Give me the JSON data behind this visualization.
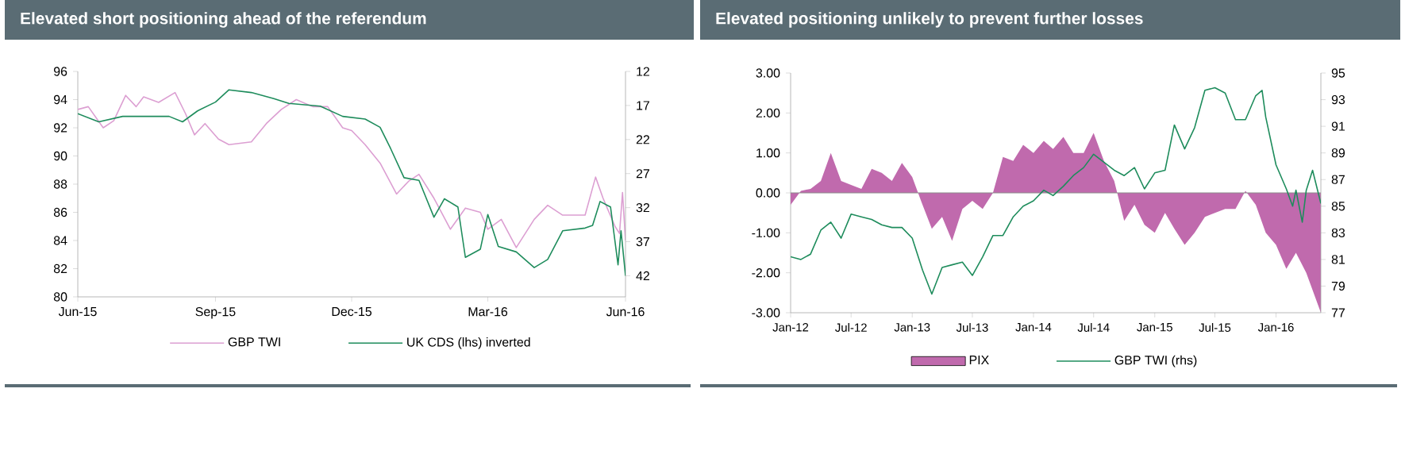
{
  "chart_data": [
    {
      "type": "line",
      "title": "Elevated short positioning ahead of the referendum",
      "xlim": [
        "2015-06-01",
        "2016-06-01"
      ],
      "xticks": [
        {
          "value": "2015-06-01",
          "label": "Jun-15"
        },
        {
          "value": "2015-09-01",
          "label": "Sep-15"
        },
        {
          "value": "2015-12-01",
          "label": "Dec-15"
        },
        {
          "value": "2016-03-01",
          "label": "Mar-16"
        },
        {
          "value": "2016-06-01",
          "label": "Jun-16"
        }
      ],
      "ylim": [
        80,
        96
      ],
      "yticks": [
        80,
        82,
        84,
        86,
        88,
        90,
        92,
        94,
        96
      ],
      "y2lim": [
        45.1,
        12
      ],
      "y2ticks": [
        12,
        17,
        22,
        27,
        32,
        37,
        42
      ],
      "legend": "bottom",
      "series": [
        {
          "name": "GBP TWI",
          "color": "#dc9fd2",
          "x": [
            "2015-06-01",
            "2015-06-08",
            "2015-06-18",
            "2015-06-25",
            "2015-07-03",
            "2015-07-10",
            "2015-07-15",
            "2015-07-25",
            "2015-08-05",
            "2015-08-12",
            "2015-08-18",
            "2015-08-25",
            "2015-09-03",
            "2015-09-10",
            "2015-09-25",
            "2015-10-05",
            "2015-10-15",
            "2015-10-25",
            "2015-11-05",
            "2015-11-15",
            "2015-11-25",
            "2015-12-01",
            "2015-12-10",
            "2015-12-20",
            "2015-12-31",
            "2016-01-08",
            "2016-01-15",
            "2016-01-25",
            "2016-02-05",
            "2016-02-15",
            "2016-02-25",
            "2016-03-01",
            "2016-03-10",
            "2016-03-20",
            "2016-04-01",
            "2016-04-10",
            "2016-04-20",
            "2016-05-05",
            "2016-05-12",
            "2016-05-17",
            "2016-05-25",
            "2016-05-28",
            "2016-05-30",
            "2016-06-01"
          ],
          "values": [
            93.3,
            93.5,
            92.0,
            92.5,
            94.3,
            93.5,
            94.2,
            93.8,
            94.5,
            93.0,
            91.5,
            92.3,
            91.2,
            90.8,
            91.0,
            92.3,
            93.3,
            94.0,
            93.5,
            93.5,
            92.0,
            91.8,
            90.8,
            89.5,
            87.3,
            88.2,
            88.7,
            87.0,
            84.8,
            86.3,
            86.0,
            84.8,
            85.5,
            83.5,
            85.5,
            86.5,
            85.8,
            85.8,
            88.5,
            87.0,
            85.0,
            84.5,
            87.4,
            84.0
          ]
        },
        {
          "name": "UK CDS (lhs) inverted",
          "color": "#1e8c5c",
          "axis": "y2",
          "x": [
            "2015-06-01",
            "2015-06-15",
            "2015-07-01",
            "2015-08-01",
            "2015-08-10",
            "2015-08-20",
            "2015-09-01",
            "2015-09-10",
            "2015-09-25",
            "2015-10-10",
            "2015-10-20",
            "2015-11-10",
            "2015-11-25",
            "2015-12-10",
            "2015-12-20",
            "2015-12-27",
            "2016-01-05",
            "2016-01-15",
            "2016-01-25",
            "2016-02-01",
            "2016-02-10",
            "2016-02-15",
            "2016-02-25",
            "2016-03-01",
            "2016-03-08",
            "2016-03-20",
            "2016-04-01",
            "2016-04-10",
            "2016-04-20",
            "2016-05-05",
            "2016-05-10",
            "2016-05-15",
            "2016-05-22",
            "2016-05-27",
            "2016-05-29",
            "2016-06-01"
          ],
          "values": [
            18.2,
            19.4,
            18.6,
            18.6,
            19.4,
            17.8,
            16.5,
            14.7,
            15.1,
            16.0,
            16.7,
            17.1,
            18.6,
            19.0,
            20.2,
            23.3,
            27.6,
            28.0,
            33.4,
            30.7,
            31.9,
            39.3,
            38.1,
            33.0,
            37.7,
            38.5,
            40.8,
            39.6,
            35.4,
            35.0,
            34.6,
            31.1,
            31.9,
            40.4,
            35.4,
            42.0
          ]
        }
      ]
    },
    {
      "type": "area",
      "title": "Elevated positioning unlikely to prevent further losses",
      "xlim": [
        "2012-01-01",
        "2016-05-15"
      ],
      "xticks": [
        {
          "value": "2012-01-01",
          "label": "Jan-12"
        },
        {
          "value": "2012-07-01",
          "label": "Jul-12"
        },
        {
          "value": "2013-01-01",
          "label": "Jan-13"
        },
        {
          "value": "2013-07-01",
          "label": "Jul-13"
        },
        {
          "value": "2014-01-01",
          "label": "Jan-14"
        },
        {
          "value": "2014-07-01",
          "label": "Jul-14"
        },
        {
          "value": "2015-01-01",
          "label": "Jan-15"
        },
        {
          "value": "2015-07-01",
          "label": "Jul-15"
        },
        {
          "value": "2016-01-01",
          "label": "Jan-16"
        }
      ],
      "ylim": [
        -3,
        3
      ],
      "yticks": [
        {
          "value": -3,
          "label": "-3.00"
        },
        {
          "value": -2,
          "label": "-2.00"
        },
        {
          "value": -1,
          "label": "-1.00"
        },
        {
          "value": 0,
          "label": "0.00"
        },
        {
          "value": 1,
          "label": "1.00"
        },
        {
          "value": 2,
          "label": "2.00"
        },
        {
          "value": 3,
          "label": "3.00"
        }
      ],
      "y2lim": [
        77,
        95
      ],
      "y2ticks": [
        77,
        79,
        81,
        83,
        85,
        87,
        89,
        91,
        93,
        95
      ],
      "legend": "bottom",
      "ref_lines": [
        {
          "axis": "y",
          "value": 0,
          "color": "#8c8c8c"
        }
      ],
      "series": [
        {
          "name": "PIX",
          "color": "#c06aad",
          "x": [
            "2012-01-01",
            "2012-02-01",
            "2012-03-01",
            "2012-04-01",
            "2012-05-01",
            "2012-06-01",
            "2012-07-01",
            "2012-08-01",
            "2012-09-01",
            "2012-10-01",
            "2012-11-01",
            "2012-12-01",
            "2013-01-01",
            "2013-02-01",
            "2013-03-01",
            "2013-04-01",
            "2013-05-01",
            "2013-06-01",
            "2013-07-01",
            "2013-08-01",
            "2013-09-01",
            "2013-10-01",
            "2013-11-01",
            "2013-12-01",
            "2014-01-01",
            "2014-02-01",
            "2014-03-01",
            "2014-04-01",
            "2014-05-01",
            "2014-06-01",
            "2014-07-01",
            "2014-08-01",
            "2014-09-01",
            "2014-10-01",
            "2014-11-01",
            "2014-12-01",
            "2015-01-01",
            "2015-02-01",
            "2015-03-01",
            "2015-04-01",
            "2015-05-01",
            "2015-06-01",
            "2015-07-01",
            "2015-08-01",
            "2015-09-01",
            "2015-10-01",
            "2015-11-01",
            "2015-12-01",
            "2016-01-01",
            "2016-02-01",
            "2016-03-01",
            "2016-04-01",
            "2016-05-15"
          ],
          "values": [
            -0.3,
            0.05,
            0.1,
            0.3,
            1.0,
            0.3,
            0.2,
            0.1,
            0.6,
            0.5,
            0.3,
            0.75,
            0.4,
            -0.3,
            -0.9,
            -0.6,
            -1.2,
            -0.4,
            -0.2,
            -0.4,
            0.0,
            0.9,
            0.8,
            1.2,
            1.0,
            1.3,
            1.1,
            1.4,
            1.0,
            1.0,
            1.5,
            0.8,
            0.3,
            -0.7,
            -0.3,
            -0.8,
            -1.0,
            -0.5,
            -0.9,
            -1.3,
            -1.0,
            -0.6,
            -0.5,
            -0.4,
            -0.4,
            0.05,
            -0.3,
            -1.0,
            -1.3,
            -1.9,
            -1.5,
            -2.0,
            -3.0
          ]
        },
        {
          "name": "GBP TWI (rhs)",
          "type": "line",
          "color": "#1e8c5c",
          "axis": "y2",
          "x": [
            "2012-01-01",
            "2012-02-01",
            "2012-03-01",
            "2012-04-01",
            "2012-05-01",
            "2012-06-01",
            "2012-07-01",
            "2012-08-01",
            "2012-09-01",
            "2012-10-01",
            "2012-11-01",
            "2012-12-01",
            "2013-01-01",
            "2013-02-01",
            "2013-03-01",
            "2013-04-01",
            "2013-05-01",
            "2013-06-01",
            "2013-07-01",
            "2013-08-01",
            "2013-09-01",
            "2013-10-01",
            "2013-11-01",
            "2013-12-01",
            "2014-01-01",
            "2014-02-01",
            "2014-03-01",
            "2014-04-01",
            "2014-05-01",
            "2014-06-01",
            "2014-07-01",
            "2014-08-01",
            "2014-09-01",
            "2014-10-01",
            "2014-11-01",
            "2014-12-01",
            "2015-01-01",
            "2015-02-01",
            "2015-03-01",
            "2015-04-01",
            "2015-05-01",
            "2015-06-01",
            "2015-07-01",
            "2015-08-01",
            "2015-09-01",
            "2015-10-01",
            "2015-11-01",
            "2015-11-20",
            "2015-12-01",
            "2016-01-01",
            "2016-02-01",
            "2016-02-20",
            "2016-03-01",
            "2016-03-20",
            "2016-04-01",
            "2016-04-20",
            "2016-05-15"
          ],
          "values": [
            81.2,
            81.0,
            81.4,
            83.2,
            83.8,
            82.6,
            84.4,
            84.2,
            84.0,
            83.6,
            83.4,
            83.4,
            82.6,
            80.2,
            78.4,
            80.4,
            80.6,
            80.8,
            79.8,
            81.2,
            82.8,
            82.8,
            84.2,
            85.0,
            85.4,
            86.2,
            85.8,
            86.5,
            87.3,
            87.9,
            88.9,
            88.3,
            87.7,
            87.3,
            87.9,
            86.3,
            87.5,
            87.7,
            91.1,
            89.3,
            90.9,
            93.7,
            93.9,
            93.5,
            91.5,
            91.5,
            93.3,
            93.7,
            91.7,
            88.1,
            86.3,
            85.0,
            86.2,
            83.8,
            86.2,
            87.7,
            85.2
          ]
        }
      ]
    }
  ]
}
